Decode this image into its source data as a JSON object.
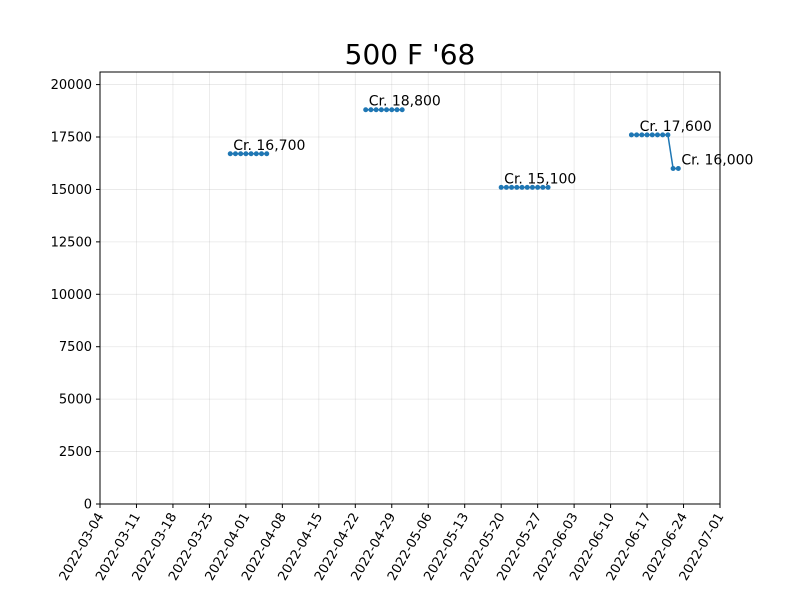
{
  "chart_data": {
    "type": "line",
    "title": "500 F '68",
    "xlabel": "",
    "ylabel": "",
    "x_axis_type": "date",
    "xlim": [
      "2022-03-04",
      "2022-07-01"
    ],
    "ylim": [
      0,
      20600
    ],
    "grid": true,
    "x_ticks": [
      "2022-03-04",
      "2022-03-11",
      "2022-03-18",
      "2022-03-25",
      "2022-04-01",
      "2022-04-08",
      "2022-04-15",
      "2022-04-22",
      "2022-04-29",
      "2022-05-06",
      "2022-05-13",
      "2022-05-20",
      "2022-05-27",
      "2022-06-03",
      "2022-06-10",
      "2022-06-17",
      "2022-06-24",
      "2022-07-01"
    ],
    "y_ticks": [
      0,
      2500,
      5000,
      7500,
      10000,
      12500,
      15000,
      17500,
      20000
    ],
    "series_color": "#1f77b4",
    "segments": [
      {
        "x": [
          "2022-03-29",
          "2022-03-30",
          "2022-03-31",
          "2022-04-01",
          "2022-04-02",
          "2022-04-03",
          "2022-04-04",
          "2022-04-05"
        ],
        "y": [
          16700,
          16700,
          16700,
          16700,
          16700,
          16700,
          16700,
          16700
        ]
      },
      {
        "x": [
          "2022-04-24",
          "2022-04-25",
          "2022-04-26",
          "2022-04-27",
          "2022-04-28",
          "2022-04-29",
          "2022-04-30",
          "2022-05-01"
        ],
        "y": [
          18800,
          18800,
          18800,
          18800,
          18800,
          18800,
          18800,
          18800
        ]
      },
      {
        "x": [
          "2022-05-20",
          "2022-05-21",
          "2022-05-22",
          "2022-05-23",
          "2022-05-24",
          "2022-05-25",
          "2022-05-26",
          "2022-05-27",
          "2022-05-28",
          "2022-05-29"
        ],
        "y": [
          15100,
          15100,
          15100,
          15100,
          15100,
          15100,
          15100,
          15100,
          15100,
          15100
        ]
      },
      {
        "x": [
          "2022-06-14",
          "2022-06-15",
          "2022-06-16",
          "2022-06-17",
          "2022-06-18",
          "2022-06-19",
          "2022-06-20",
          "2022-06-21",
          "2022-06-22",
          "2022-06-23"
        ],
        "y": [
          17600,
          17600,
          17600,
          17600,
          17600,
          17600,
          17600,
          17600,
          16000,
          16000
        ]
      }
    ],
    "annotations": [
      {
        "text": "Cr. 16,700",
        "x": "2022-03-29",
        "y": 16700
      },
      {
        "text": "Cr. 18,800",
        "x": "2022-04-24",
        "y": 18800
      },
      {
        "text": "Cr. 15,100",
        "x": "2022-05-20",
        "y": 15100
      },
      {
        "text": "Cr. 17,600",
        "x": "2022-06-15",
        "y": 17600
      },
      {
        "text": "Cr. 16,000",
        "x": "2022-06-23",
        "y": 16000
      }
    ]
  }
}
